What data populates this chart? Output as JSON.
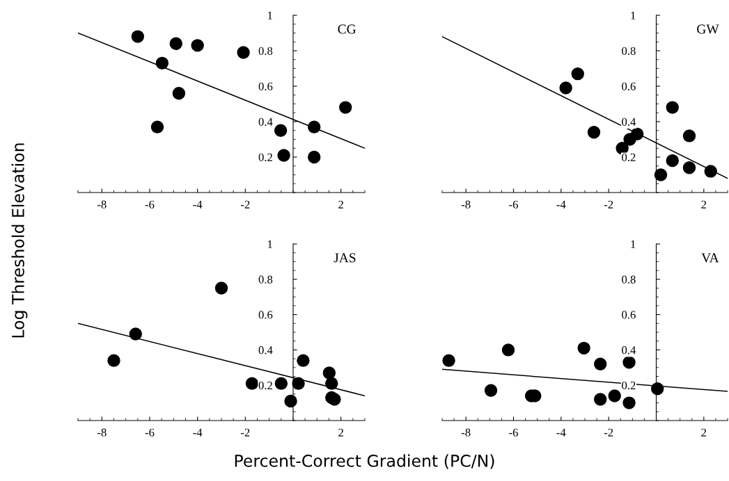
{
  "chart_data": [
    {
      "type": "scatter",
      "title": "CG",
      "ylabel": "Log Threshold Elevation",
      "xlim": [
        -9,
        3
      ],
      "ylim": [
        0,
        1
      ],
      "xticks": [
        -8,
        -6,
        -4,
        -2,
        2
      ],
      "yticks": [
        0.2,
        0.4,
        0.6,
        0.8,
        1
      ],
      "grid": false,
      "series": [
        {
          "color": "#000000",
          "marker": "circle",
          "x": [
            -6.5,
            -4.9,
            -4.0,
            -2.08,
            -5.48,
            -4.78,
            -5.68,
            -0.52,
            -0.39,
            0.88,
            0.88,
            2.19
          ],
          "values": [
            0.88,
            0.84,
            0.83,
            0.79,
            0.73,
            0.56,
            0.37,
            0.35,
            0.21,
            0.37,
            0.2,
            0.48
          ]
        },
        {
          "type": "line",
          "color": "#000000",
          "x": [
            -9,
            3
          ],
          "values": [
            0.9,
            0.25
          ]
        }
      ]
    },
    {
      "type": "scatter",
      "title": "GW",
      "xlim": [
        -9,
        3
      ],
      "ylim": [
        0,
        1
      ],
      "xticks": [
        -8,
        -6,
        -4,
        -2,
        2
      ],
      "yticks": [
        0.2,
        0.4,
        0.6,
        0.8,
        1
      ],
      "grid": false,
      "series": [
        {
          "color": "#000000",
          "marker": "circle",
          "x": [
            -3.8,
            -3.3,
            -2.62,
            -1.43,
            -1.11,
            -0.8,
            0.68,
            1.39,
            0.68,
            1.39,
            0.19,
            2.29
          ],
          "values": [
            0.59,
            0.67,
            0.34,
            0.25,
            0.3,
            0.33,
            0.48,
            0.32,
            0.18,
            0.14,
            0.1,
            0.12
          ]
        },
        {
          "type": "line",
          "color": "#000000",
          "x": [
            -9,
            3
          ],
          "values": [
            0.88,
            0.08
          ]
        }
      ]
    },
    {
      "type": "scatter",
      "title": "JAS",
      "xlabel": "Percent-Correct Gradient (PC/N)",
      "xlim": [
        -9,
        3
      ],
      "ylim": [
        0,
        1
      ],
      "xticks": [
        -8,
        -6,
        -4,
        -2,
        2
      ],
      "yticks": [
        0.2,
        0.4,
        0.6,
        0.8,
        1
      ],
      "grid": false,
      "series": [
        {
          "color": "#000000",
          "marker": "circle",
          "x": [
            -3.0,
            -6.59,
            -7.5,
            -1.72,
            -0.5,
            0.22,
            0.42,
            -0.1,
            1.51,
            1.61,
            1.61,
            1.73
          ],
          "values": [
            0.75,
            0.49,
            0.34,
            0.21,
            0.21,
            0.21,
            0.34,
            0.11,
            0.27,
            0.21,
            0.13,
            0.12
          ]
        },
        {
          "type": "line",
          "color": "#000000",
          "x": [
            -9,
            3
          ],
          "values": [
            0.55,
            0.14
          ]
        }
      ]
    },
    {
      "type": "scatter",
      "title": "VA",
      "xlim": [
        -9,
        3
      ],
      "ylim": [
        0,
        1
      ],
      "xticks": [
        -8,
        -6,
        -4,
        -2,
        2
      ],
      "yticks": [
        0.2,
        0.4,
        0.6,
        0.8,
        1
      ],
      "grid": false,
      "series": [
        {
          "color": "#000000",
          "marker": "circle",
          "x": [
            -8.72,
            -6.22,
            -3.04,
            -2.35,
            -1.14,
            -6.95,
            -5.25,
            -5.1,
            -2.35,
            -1.75,
            -1.14,
            0.05
          ],
          "values": [
            0.34,
            0.4,
            0.41,
            0.32,
            0.33,
            0.17,
            0.14,
            0.14,
            0.12,
            0.14,
            0.1,
            0.18
          ]
        },
        {
          "type": "line",
          "color": "#000000",
          "x": [
            -9,
            3
          ],
          "values": [
            0.29,
            0.165
          ]
        }
      ]
    }
  ]
}
